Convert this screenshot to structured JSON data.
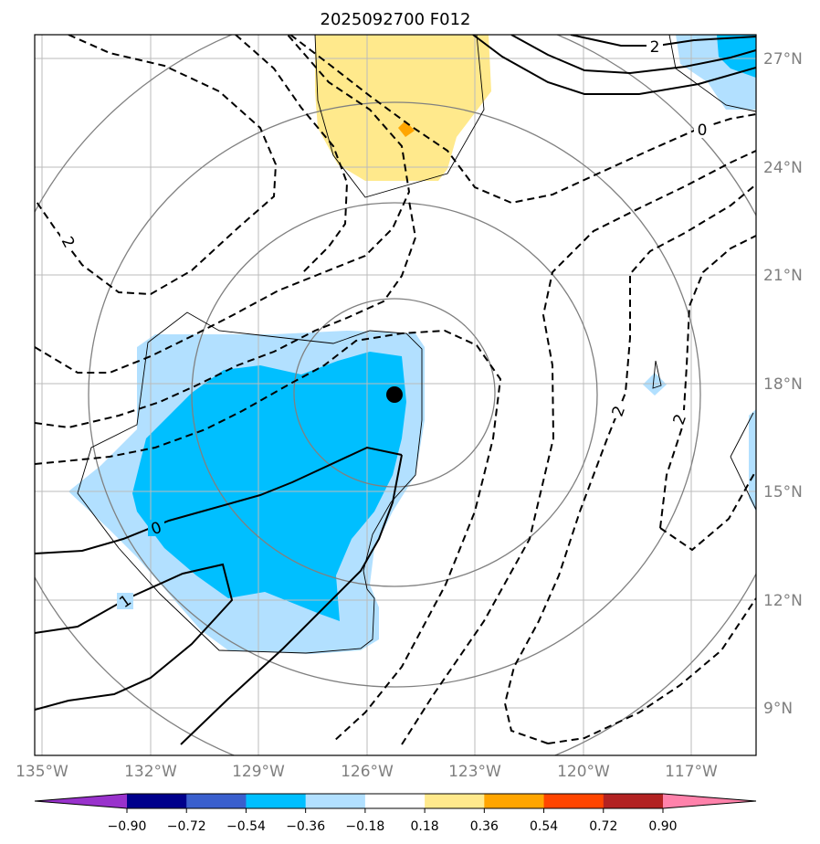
{
  "title": "2025092700 F012",
  "axes": {
    "lon_labels": [
      "135°W",
      "132°W",
      "129°W",
      "126°W",
      "123°W",
      "120°W",
      "117°W"
    ],
    "lat_labels": [
      "27°N",
      "24°N",
      "21°N",
      "18°N",
      "15°N",
      "12°N",
      "9°N"
    ]
  },
  "contour_labels": [
    "2",
    "0",
    "2",
    "2",
    "2",
    "0",
    "1"
  ],
  "colorbar": {
    "ticks": [
      "−0.90",
      "−0.72",
      "−0.54",
      "−0.36",
      "−0.18",
      "0.18",
      "0.36",
      "0.54",
      "0.72",
      "0.90"
    ],
    "colors": [
      "#9932cc",
      "#00008b",
      "#3a5fcd",
      "#00bfff",
      "#b2e0ff",
      "#ffffff",
      "#ffe98c",
      "#ffa500",
      "#ff4500",
      "#b22222",
      "#ff82ab"
    ]
  },
  "colors": {
    "fill_light_blue": "#b2e0ff",
    "fill_blue": "#00bfff",
    "fill_yellow": "#ffe98c",
    "fill_orange": "#ffa500"
  },
  "center_marker": "storm-center-dot"
}
